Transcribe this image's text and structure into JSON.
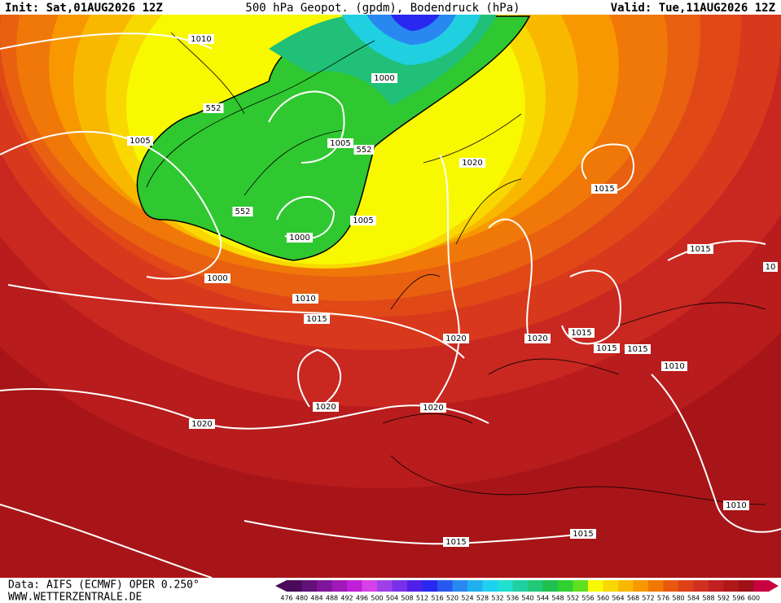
{
  "header": {
    "init": "Init: Sat,01AUG2026 12Z",
    "title": "500 hPa Geopot. (gpdm), Bodendruck (hPa)",
    "valid": "Valid: Tue,11AUG2026 12Z"
  },
  "footer": {
    "source": "Data: AIFS (ECMWF) OPER 0.250°",
    "url": "WWW.WETTERZENTRALE.DE"
  },
  "isobar_labels": [
    "1010",
    "552",
    "1000",
    "1005",
    "1005",
    "552",
    "1020",
    "1015",
    "552",
    "1005",
    "1000",
    "1000",
    "1010",
    "1015",
    "1015",
    "10",
    "1020",
    "1020",
    "1015",
    "1015",
    "1015",
    "1010",
    "1020",
    "1020",
    "1020",
    "1010",
    "1015",
    "1015"
  ],
  "colorbar": {
    "labels": [
      476,
      480,
      484,
      488,
      492,
      496,
      500,
      504,
      508,
      512,
      516,
      520,
      524,
      528,
      532,
      536,
      540,
      544,
      548,
      552,
      556,
      560,
      564,
      568,
      572,
      576,
      580,
      584,
      588,
      592,
      596,
      600
    ],
    "colors": [
      "#4a0a5a",
      "#62107a",
      "#80149a",
      "#a018b8",
      "#c020d8",
      "#d840e8",
      "#a040e8",
      "#7830e8",
      "#5020e8",
      "#2828f0",
      "#2858f0",
      "#2888f0",
      "#20b0f0",
      "#20d0f0",
      "#20e0d0",
      "#20d0a0",
      "#20c878",
      "#20c050",
      "#30d030",
      "#60e020",
      "#f8f800",
      "#f8d800",
      "#f8b800",
      "#f89800",
      "#f07800",
      "#e85810",
      "#e04018",
      "#d03020",
      "#c02020",
      "#b01818",
      "#a01018",
      "#c80040"
    ]
  }
}
